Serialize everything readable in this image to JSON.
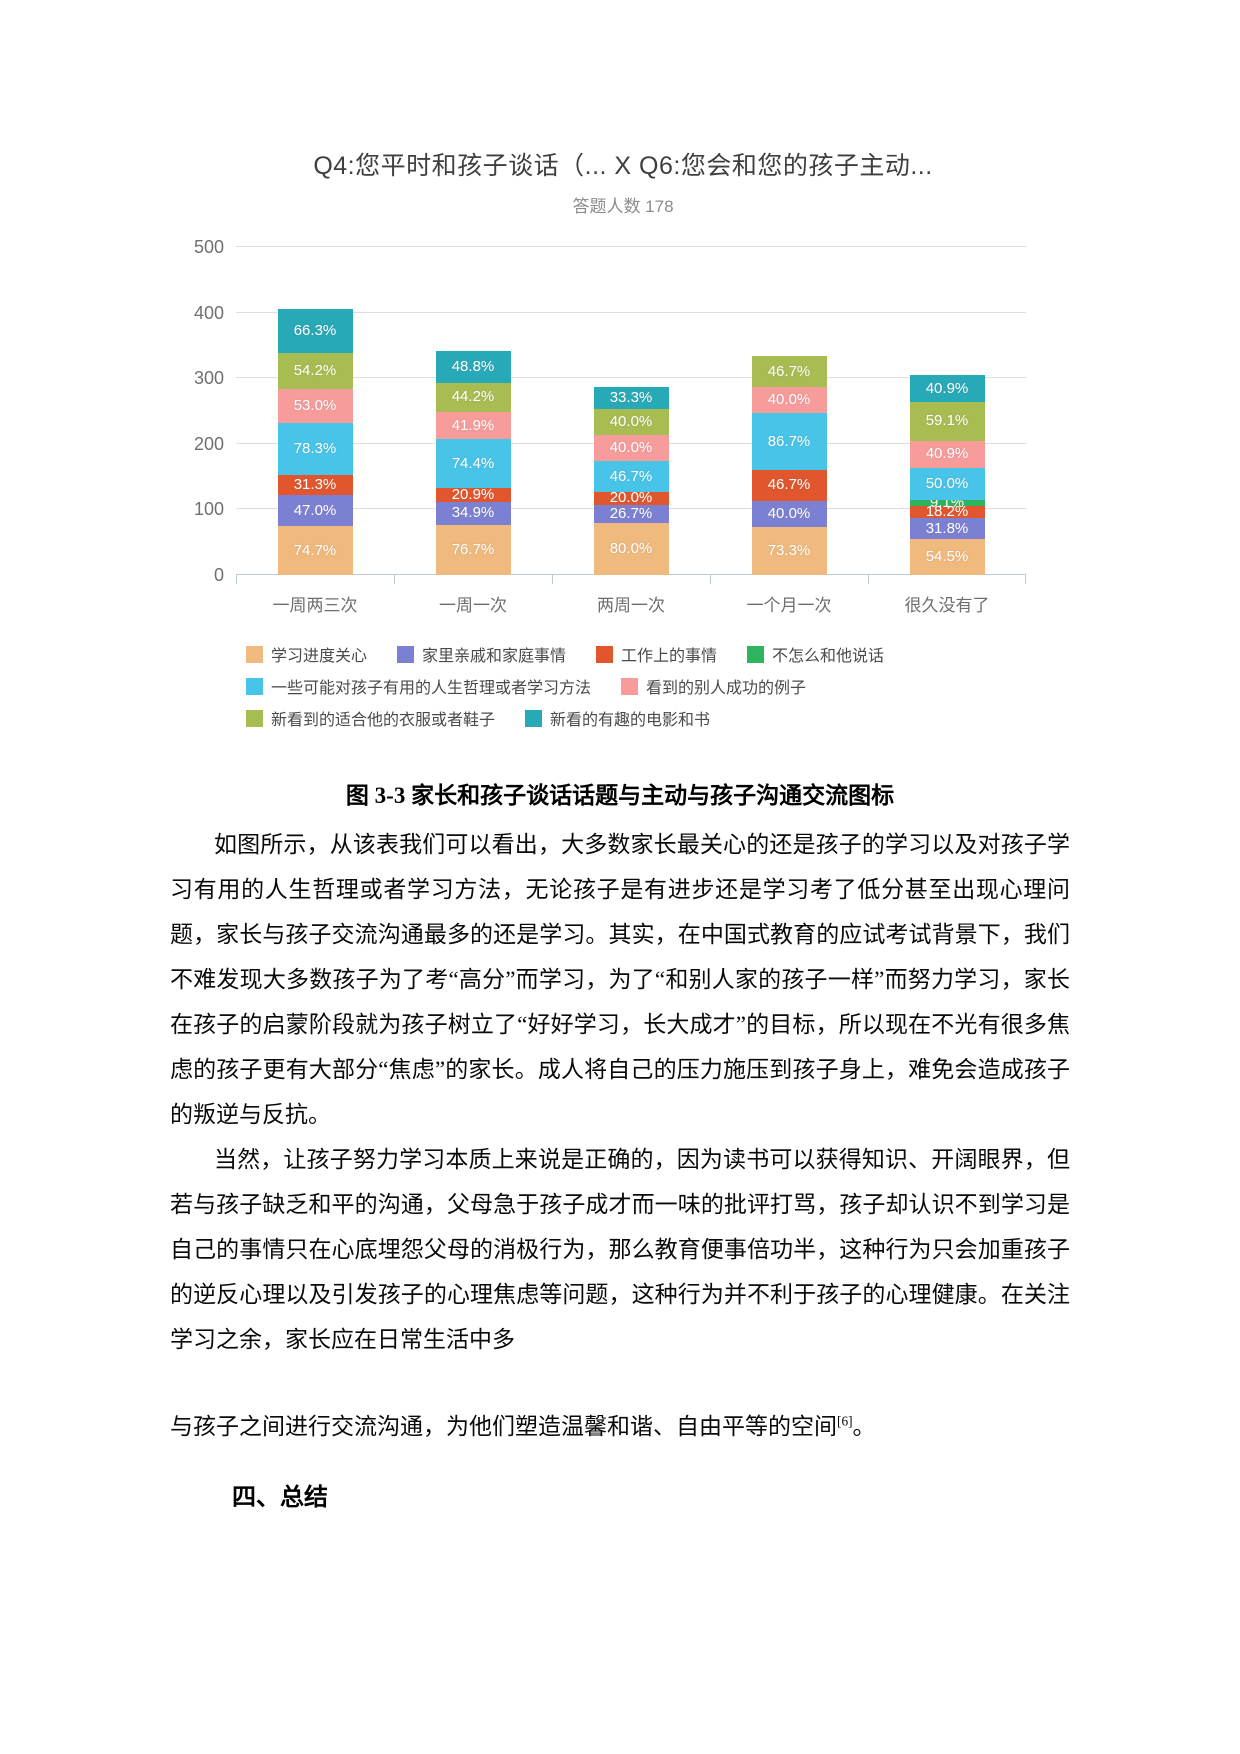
{
  "chart": {
    "title": "Q4:您平时和孩子谈话（... X Q6:您会和您的孩子主动...",
    "subtitle": "答题人数 178"
  },
  "chart_data": {
    "type": "bar",
    "stacked": true,
    "title": "Q4:您平时和孩子谈话（... X Q6:您会和您的孩子主动...",
    "subtitle": "答题人数 178",
    "categories": [
      "一周两三次",
      "一周一次",
      "两周一次",
      "一个月一次",
      "很久没有了"
    ],
    "series": [
      {
        "name": "学习进度关心",
        "color": "#f0b97d",
        "values": [
          74.7,
          76.7,
          80.0,
          73.3,
          54.5
        ]
      },
      {
        "name": "家里亲戚和家庭事情",
        "color": "#7c80d3",
        "values": [
          47.0,
          34.9,
          26.7,
          40.0,
          31.8
        ]
      },
      {
        "name": "工作上的事情",
        "color": "#e1562c",
        "values": [
          31.3,
          20.9,
          20.0,
          46.7,
          18.2
        ]
      },
      {
        "name": "不怎么和他说话",
        "color": "#2eb45e",
        "values": [
          0,
          0,
          0,
          0,
          9.1
        ]
      },
      {
        "name": "一些可能对孩子有用的人生哲理或者学习方法",
        "color": "#47c4e8",
        "values": [
          78.3,
          74.4,
          46.7,
          86.7,
          50.0
        ]
      },
      {
        "name": "看到的别人成功的例子",
        "color": "#f79c9b",
        "values": [
          53.0,
          41.9,
          40.0,
          40.0,
          40.9
        ]
      },
      {
        "name": "新看到的适合他的衣服或者鞋子",
        "color": "#a7bd51",
        "values": [
          54.2,
          44.2,
          40.0,
          46.7,
          59.1
        ]
      },
      {
        "name": "新看的有趣的电影和书",
        "color": "#28a9b8",
        "values": [
          66.3,
          48.8,
          33.3,
          0,
          40.9
        ]
      }
    ],
    "ylim": [
      0,
      500
    ],
    "yticks": [
      0,
      100,
      200,
      300,
      400,
      500
    ],
    "value_suffix": "%",
    "grid": true,
    "legend_position": "bottom",
    "legend_rows": [
      4,
      2,
      2
    ]
  },
  "caption": "图 3-3 家长和孩子谈话话题与主动与孩子沟通交流图标",
  "body": {
    "paragraph_1": "如图所示，从该表我们可以看出，大多数家长最关心的还是孩子的学习以及对孩子学习有用的人生哲理或者学习方法，无论孩子是有进步还是学习考了低分甚至出现心理问题，家长与孩子交流沟通最多的还是学习。其实，在中国式教育的应试考试背景下，我们不难发现大多数孩子为了考“高分”而学习，为了“和别人家的孩子一样”而努力学习，家长在孩子的启蒙阶段就为孩子树立了“好好学习，长大成才”的目标，所以现在不光有很多焦虑的孩子更有大部分“焦虑”的家长。成人将自己的压力施压到孩子身上，难免会造成孩子的叛逆与反抗。",
    "paragraph_2": "当然，让孩子努力学习本质上来说是正确的，因为读书可以获得知识、开阔眼界，但若与孩子缺乏和平的沟通，父母急于孩子成才而一味的批评打骂，孩子却认识不到学习是自己的事情只在心底埋怨父母的消极行为，那么教育便事倍功半，这种行为只会加重孩子的逆反心理以及引发孩子的心理焦虑等问题，这种行为并不利于孩子的心理健康。在关注学习之余，家长应在日常生活中多",
    "paragraph_3_text": "与孩子之间进行交流沟通，为他们塑造温馨和谐、自由平等的空间",
    "paragraph_3_ref": "[6]",
    "paragraph_3_end": "。",
    "section_heading": "四、总结"
  }
}
